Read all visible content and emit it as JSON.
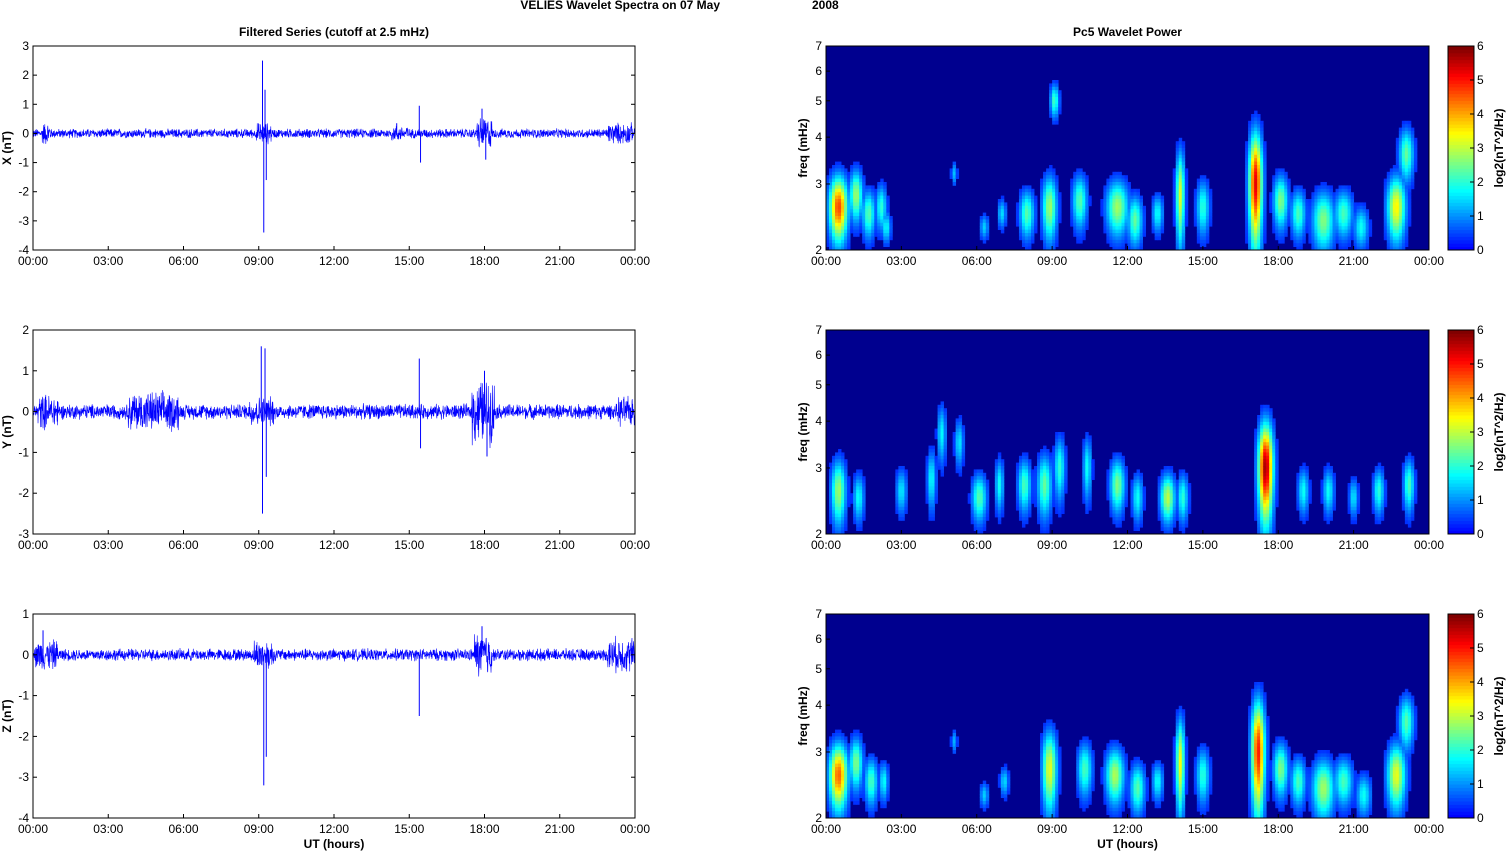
{
  "figure": {
    "suptitle_left": "VELIES Wavelet Spectra on 07 May",
    "suptitle_right": "2008"
  },
  "colors": {
    "trace": "#0000ff",
    "spectrum_background": "#00008f"
  },
  "chart_data": [
    {
      "type": "line",
      "panel": "left-1",
      "title": "Filtered Series (cutoff at 2.5 mHz)",
      "xlabel": "",
      "ylabel": "X (nT)",
      "xlim": [
        0,
        24
      ],
      "ylim": [
        -4,
        3
      ],
      "yticks": [
        "-4",
        "-3",
        "-2",
        "-1",
        "0",
        "1",
        "2",
        "3"
      ],
      "xticks": [
        "00:00",
        "03:00",
        "06:00",
        "09:00",
        "12:00",
        "15:00",
        "18:00",
        "21:00",
        "00:00"
      ],
      "noise_amplitude": 0.13,
      "spikes": [
        [
          9.15,
          2.5
        ],
        [
          9.2,
          -3.4
        ],
        [
          9.3,
          -1.6
        ],
        [
          9.25,
          1.5
        ],
        [
          14.5,
          0.35
        ],
        [
          15.4,
          0.95
        ],
        [
          15.45,
          -1.0
        ],
        [
          17.9,
          0.85
        ],
        [
          18.05,
          -0.9
        ]
      ],
      "bursts": [
        [
          0.35,
          0.7,
          0.32
        ],
        [
          8.9,
          9.5,
          0.3
        ],
        [
          14.3,
          15.0,
          0.22
        ],
        [
          17.7,
          18.3,
          0.45
        ],
        [
          22.9,
          23.9,
          0.3
        ]
      ]
    },
    {
      "type": "line",
      "panel": "left-2",
      "title": "",
      "xlabel": "",
      "ylabel": "Y (nT)",
      "xlim": [
        0,
        24
      ],
      "ylim": [
        -3,
        2
      ],
      "yticks": [
        "-3",
        "-2",
        "-1",
        "0",
        "1",
        "2"
      ],
      "xticks": [
        "00:00",
        "03:00",
        "06:00",
        "09:00",
        "12:00",
        "15:00",
        "18:00",
        "21:00",
        "00:00"
      ],
      "noise_amplitude": 0.15,
      "spikes": [
        [
          9.1,
          1.6
        ],
        [
          9.15,
          -2.5
        ],
        [
          9.25,
          1.55
        ],
        [
          9.3,
          -1.6
        ],
        [
          15.4,
          1.3
        ],
        [
          15.45,
          -0.9
        ],
        [
          18.0,
          1.0
        ],
        [
          18.1,
          -1.1
        ]
      ],
      "bursts": [
        [
          0.2,
          1.0,
          0.35
        ],
        [
          3.8,
          5.8,
          0.4
        ],
        [
          8.6,
          9.6,
          0.3
        ],
        [
          17.5,
          18.4,
          0.65
        ],
        [
          23.3,
          24.0,
          0.3
        ]
      ]
    },
    {
      "type": "line",
      "panel": "left-3",
      "title": "",
      "xlabel": "UT (hours)",
      "ylabel": "Z (nT)",
      "xlim": [
        0,
        24
      ],
      "ylim": [
        -4,
        1
      ],
      "yticks": [
        "-4",
        "-3",
        "-2",
        "-1",
        "0",
        "1"
      ],
      "xticks": [
        "00:00",
        "03:00",
        "06:00",
        "09:00",
        "12:00",
        "15:00",
        "18:00",
        "21:00",
        "00:00"
      ],
      "noise_amplitude": 0.12,
      "spikes": [
        [
          0.4,
          0.6
        ],
        [
          9.2,
          -3.2
        ],
        [
          9.3,
          -2.5
        ],
        [
          15.4,
          -1.5
        ],
        [
          17.9,
          0.7
        ]
      ],
      "bursts": [
        [
          0.1,
          1.0,
          0.3
        ],
        [
          8.8,
          9.6,
          0.3
        ],
        [
          17.6,
          18.3,
          0.45
        ],
        [
          22.9,
          24.0,
          0.35
        ]
      ]
    },
    {
      "type": "heatmap",
      "panel": "right-1",
      "title": "Pc5 Wavelet Power",
      "xlabel": "",
      "ylabel": "freq (mHz)",
      "xlim": [
        0,
        24
      ],
      "ylim": [
        2,
        7
      ],
      "yscale": "log",
      "yticks": [
        "2",
        "3",
        "4",
        "5",
        "6",
        "7"
      ],
      "xticks": [
        "00:00",
        "03:00",
        "06:00",
        "09:00",
        "12:00",
        "15:00",
        "18:00",
        "21:00",
        "00:00"
      ],
      "colorbar_label": "log2(nT^2/Hz)",
      "colorbar_ticks": [
        "0",
        "1",
        "2",
        "3",
        "4",
        "5",
        "6"
      ],
      "clim": [
        0,
        6
      ],
      "blobs": [
        [
          0.5,
          2.6,
          0.25,
          0.35,
          4.7
        ],
        [
          1.2,
          2.8,
          0.18,
          0.3,
          2.8
        ],
        [
          1.7,
          2.5,
          0.18,
          0.25,
          2.3
        ],
        [
          2.2,
          2.6,
          0.15,
          0.25,
          2.0
        ],
        [
          2.4,
          2.3,
          0.12,
          0.15,
          1.8
        ],
        [
          5.1,
          3.2,
          0.08,
          0.15,
          1.3
        ],
        [
          6.3,
          2.3,
          0.12,
          0.12,
          1.4
        ],
        [
          7.0,
          2.5,
          0.12,
          0.15,
          1.5
        ],
        [
          8.0,
          2.5,
          0.2,
          0.25,
          2.3
        ],
        [
          8.9,
          2.6,
          0.2,
          0.35,
          2.8
        ],
        [
          9.1,
          5.0,
          0.12,
          0.35,
          2.2
        ],
        [
          10.1,
          2.7,
          0.2,
          0.3,
          2.3
        ],
        [
          11.6,
          2.6,
          0.3,
          0.3,
          2.8
        ],
        [
          12.3,
          2.4,
          0.2,
          0.25,
          2.4
        ],
        [
          13.2,
          2.5,
          0.15,
          0.2,
          1.8
        ],
        [
          14.1,
          2.8,
          0.12,
          0.55,
          3.2
        ],
        [
          15.0,
          2.6,
          0.18,
          0.3,
          2.0
        ],
        [
          17.1,
          3.0,
          0.18,
          0.7,
          5.3
        ],
        [
          18.1,
          2.7,
          0.2,
          0.3,
          2.6
        ],
        [
          18.8,
          2.5,
          0.2,
          0.25,
          2.2
        ],
        [
          19.8,
          2.4,
          0.3,
          0.3,
          2.6
        ],
        [
          20.6,
          2.5,
          0.25,
          0.25,
          2.2
        ],
        [
          21.3,
          2.3,
          0.2,
          0.2,
          1.8
        ],
        [
          22.7,
          2.6,
          0.25,
          0.35,
          3.5
        ],
        [
          23.1,
          3.6,
          0.2,
          0.4,
          2.4
        ]
      ]
    },
    {
      "type": "heatmap",
      "panel": "right-2",
      "title": "",
      "xlabel": "",
      "ylabel": "freq (mHz)",
      "xlim": [
        0,
        24
      ],
      "ylim": [
        2,
        7
      ],
      "yscale": "log",
      "yticks": [
        "2",
        "3",
        "4",
        "5",
        "6",
        "7"
      ],
      "xticks": [
        "00:00",
        "03:00",
        "06:00",
        "09:00",
        "12:00",
        "15:00",
        "18:00",
        "21:00",
        "00:00"
      ],
      "colorbar_label": "log2(nT^2/Hz)",
      "colorbar_ticks": [
        "0",
        "1",
        "2",
        "3",
        "4",
        "5",
        "6"
      ],
      "clim": [
        0,
        6
      ],
      "blobs": [
        [
          0.5,
          2.6,
          0.2,
          0.35,
          2.8
        ],
        [
          1.3,
          2.5,
          0.15,
          0.25,
          1.8
        ],
        [
          3.0,
          2.6,
          0.15,
          0.25,
          1.6
        ],
        [
          4.2,
          2.8,
          0.12,
          0.35,
          1.8
        ],
        [
          4.6,
          3.7,
          0.12,
          0.45,
          1.7
        ],
        [
          5.3,
          3.5,
          0.12,
          0.35,
          1.6
        ],
        [
          6.1,
          2.5,
          0.2,
          0.25,
          2.3
        ],
        [
          6.9,
          2.7,
          0.12,
          0.3,
          1.8
        ],
        [
          7.9,
          2.7,
          0.18,
          0.3,
          2.2
        ],
        [
          8.7,
          2.7,
          0.2,
          0.35,
          2.4
        ],
        [
          9.3,
          3.0,
          0.15,
          0.4,
          2.0
        ],
        [
          10.4,
          3.0,
          0.12,
          0.4,
          1.8
        ],
        [
          11.6,
          2.7,
          0.2,
          0.3,
          2.6
        ],
        [
          12.4,
          2.5,
          0.15,
          0.25,
          1.8
        ],
        [
          13.6,
          2.5,
          0.2,
          0.25,
          3.0
        ],
        [
          14.2,
          2.5,
          0.15,
          0.25,
          2.0
        ],
        [
          17.5,
          3.0,
          0.2,
          0.6,
          5.8
        ],
        [
          19.0,
          2.6,
          0.15,
          0.25,
          1.8
        ],
        [
          20.0,
          2.6,
          0.15,
          0.25,
          1.8
        ],
        [
          21.0,
          2.5,
          0.12,
          0.2,
          1.6
        ],
        [
          22.0,
          2.6,
          0.15,
          0.25,
          2.0
        ],
        [
          23.2,
          2.7,
          0.15,
          0.3,
          2.2
        ]
      ]
    },
    {
      "type": "heatmap",
      "panel": "right-3",
      "title": "",
      "xlabel": "UT (hours)",
      "ylabel": "freq (mHz)",
      "xlim": [
        0,
        24
      ],
      "ylim": [
        2,
        7
      ],
      "yscale": "log",
      "yticks": [
        "2",
        "3",
        "4",
        "5",
        "6",
        "7"
      ],
      "xticks": [
        "00:00",
        "03:00",
        "06:00",
        "09:00",
        "12:00",
        "15:00",
        "18:00",
        "21:00",
        "00:00"
      ],
      "colorbar_label": "log2(nT^2/Hz)",
      "colorbar_ticks": [
        "0",
        "1",
        "2",
        "3",
        "4",
        "5",
        "6"
      ],
      "clim": [
        0,
        6
      ],
      "blobs": [
        [
          0.5,
          2.6,
          0.25,
          0.35,
          4.5
        ],
        [
          1.2,
          2.8,
          0.18,
          0.3,
          2.6
        ],
        [
          1.8,
          2.5,
          0.18,
          0.25,
          2.2
        ],
        [
          2.3,
          2.5,
          0.12,
          0.2,
          1.8
        ],
        [
          5.1,
          3.2,
          0.08,
          0.15,
          1.2
        ],
        [
          6.3,
          2.3,
          0.12,
          0.12,
          1.4
        ],
        [
          7.1,
          2.5,
          0.12,
          0.15,
          1.5
        ],
        [
          8.9,
          2.7,
          0.2,
          0.45,
          3.3
        ],
        [
          10.3,
          2.7,
          0.2,
          0.3,
          2.2
        ],
        [
          11.5,
          2.6,
          0.25,
          0.3,
          2.9
        ],
        [
          12.4,
          2.4,
          0.2,
          0.25,
          2.3
        ],
        [
          13.2,
          2.5,
          0.15,
          0.2,
          1.8
        ],
        [
          14.1,
          2.8,
          0.12,
          0.55,
          3.4
        ],
        [
          15.0,
          2.6,
          0.18,
          0.3,
          2.0
        ],
        [
          17.2,
          3.0,
          0.18,
          0.7,
          5.0
        ],
        [
          18.1,
          2.7,
          0.2,
          0.3,
          2.6
        ],
        [
          18.8,
          2.5,
          0.2,
          0.25,
          2.2
        ],
        [
          19.8,
          2.4,
          0.3,
          0.3,
          2.8
        ],
        [
          20.6,
          2.5,
          0.25,
          0.25,
          2.2
        ],
        [
          21.4,
          2.3,
          0.2,
          0.2,
          1.8
        ],
        [
          22.7,
          2.6,
          0.25,
          0.35,
          3.3
        ],
        [
          23.1,
          3.6,
          0.2,
          0.4,
          2.3
        ]
      ]
    }
  ]
}
